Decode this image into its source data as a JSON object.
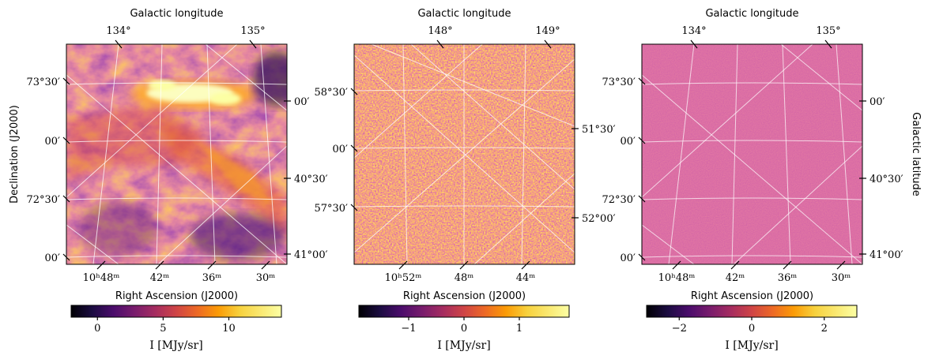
{
  "chart_data": [
    {
      "type": "heatmap",
      "panel": "left",
      "xlabel": "Right Ascension (J2000)",
      "ylabel": "Declination (J2000)",
      "top_label": "Galactic longitude",
      "right_label": "",
      "top_ticks": [
        "134°",
        "135°"
      ],
      "left_ticks": [
        "73°30′",
        "00′",
        "72°30′",
        "00′"
      ],
      "right_ticks": [
        "00′",
        "40°30′",
        "41°00′"
      ],
      "bottom_ticks": [
        "10ʰ48ᵐ",
        "42ᵐ",
        "36ᵐ",
        "30ᵐ"
      ],
      "colorbar": {
        "label": "I [MJy/sr]",
        "range": [
          -2,
          14
        ],
        "ticks": [
          0,
          5,
          10
        ],
        "tick_labels": [
          "0",
          "5",
          "10"
        ],
        "colormap": "inferno"
      },
      "features": "bright cloud filament in upper half with diagonal streaks"
    },
    {
      "type": "heatmap",
      "panel": "middle",
      "xlabel": "Right Ascension (J2000)",
      "ylabel": "",
      "top_label": "Galactic longitude",
      "right_label": "",
      "top_ticks": [
        "148°",
        "149°"
      ],
      "left_ticks": [
        "58°30′",
        "00′",
        "57°30′"
      ],
      "right_ticks": [
        "51°30′",
        "52°00′"
      ],
      "bottom_ticks": [
        "10ʰ52ᵐ",
        "48ᵐ",
        "44ᵐ"
      ],
      "colorbar": {
        "label": "I [MJy/sr]",
        "range": [
          -1.9,
          1.9
        ],
        "ticks": [
          -1,
          0,
          1
        ],
        "tick_labels": [
          "−1",
          "0",
          "1"
        ],
        "colormap": "inferno"
      },
      "features": "noise-like point source field"
    },
    {
      "type": "heatmap",
      "panel": "right",
      "xlabel": "Right Ascension (J2000)",
      "ylabel": "",
      "top_label": "Galactic longitude",
      "right_label": "Galactic latitude",
      "top_ticks": [
        "134°",
        "135°"
      ],
      "left_ticks": [
        "73°30′",
        "00′",
        "72°30′",
        "00′"
      ],
      "right_ticks": [
        "00′",
        "40°30′",
        "41°00′"
      ],
      "bottom_ticks": [
        "10ʰ48ᵐ",
        "42ᵐ",
        "36ᵐ",
        "30ᵐ"
      ],
      "colorbar": {
        "label": "I [MJy/sr]",
        "range": [
          -2.9,
          2.9
        ],
        "ticks": [
          -2,
          0,
          2
        ],
        "tick_labels": [
          "−2",
          "0",
          "2"
        ],
        "colormap": "inferno"
      },
      "features": "uniform residual noise"
    }
  ]
}
